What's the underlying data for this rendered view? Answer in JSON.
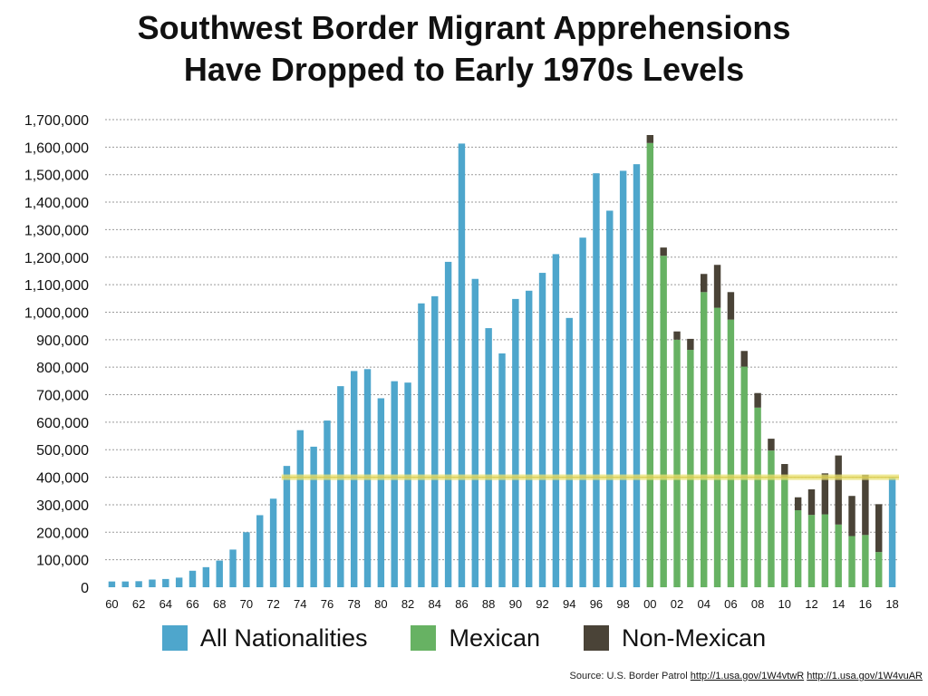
{
  "chart_data": {
    "type": "bar",
    "title_lines": [
      "Southwest Border Migrant Apprehensions",
      "Have Dropped to Early 1970s Levels"
    ],
    "x_tick_labels": [
      "60",
      "62",
      "64",
      "66",
      "68",
      "70",
      "72",
      "74",
      "76",
      "78",
      "80",
      "82",
      "84",
      "86",
      "88",
      "90",
      "92",
      "94",
      "96",
      "98",
      "00",
      "02",
      "04",
      "06",
      "08",
      "10",
      "12",
      "14",
      "16",
      "18"
    ],
    "y_tick_labels": [
      "0",
      "100,000",
      "200,000",
      "300,000",
      "400,000",
      "500,000",
      "600,000",
      "700,000",
      "800,000",
      "900,000",
      "1,000,000",
      "1,100,000",
      "1,200,000",
      "1,300,000",
      "1,400,000",
      "1,500,000",
      "1,600,000",
      "1,700,000"
    ],
    "ylim": [
      0,
      1700000
    ],
    "y_step": 100000,
    "grid": true,
    "reference_line": 400000,
    "colors": {
      "all": "#4ea6cc",
      "mexican": "#67b263",
      "non_mexican": "#4a4337",
      "reference_line": "#e8e070",
      "grid": "#9a9a9a"
    },
    "legend": [
      {
        "key": "all",
        "label": "All Nationalities"
      },
      {
        "key": "mexican",
        "label": "Mexican"
      },
      {
        "key": "non_mexican",
        "label": "Non-Mexican"
      }
    ],
    "legend_position": "bottom",
    "all_nationalities": {
      "years": [
        1960,
        1961,
        1962,
        1963,
        1964,
        1965,
        1966,
        1967,
        1968,
        1969,
        1970,
        1971,
        1972,
        1973,
        1974,
        1975,
        1976,
        1977,
        1978,
        1979,
        1980,
        1981,
        1982,
        1983,
        1984,
        1985,
        1986,
        1987,
        1988,
        1989,
        1990,
        1991,
        1992,
        1993,
        1994,
        1995,
        1996,
        1997,
        1998,
        1999
      ],
      "values": [
        21000,
        21000,
        22000,
        28000,
        30000,
        35000,
        60000,
        73000,
        97000,
        137000,
        200000,
        262000,
        322000,
        441000,
        571000,
        511000,
        606000,
        731000,
        786000,
        793000,
        687000,
        749000,
        744000,
        1032000,
        1058000,
        1183000,
        1613000,
        1121000,
        942000,
        850000,
        1048000,
        1078000,
        1143000,
        1211000,
        979000,
        1271000,
        1505000,
        1369000,
        1514000,
        1538000
      ]
    },
    "stacked": {
      "years": [
        2000,
        2001,
        2002,
        2003,
        2004,
        2005,
        2006,
        2007,
        2008,
        2009,
        2010,
        2011,
        2012,
        2013,
        2014,
        2015,
        2016,
        2017
      ],
      "mexican": [
        1615000,
        1205000,
        900000,
        863000,
        1073000,
        1016000,
        973000,
        802000,
        653000,
        497000,
        397000,
        280000,
        263000,
        265000,
        228000,
        186000,
        190000,
        128000
      ],
      "non_mexican": [
        29000,
        30000,
        30000,
        40000,
        66000,
        156000,
        100000,
        57000,
        53000,
        43000,
        51000,
        47000,
        93000,
        149000,
        251000,
        146000,
        219000,
        174000
      ]
    },
    "all_nationalities_extra": {
      "years": [
        2018
      ],
      "values": [
        397000
      ]
    }
  },
  "source": {
    "prefix": "Source: U.S. Border Patrol",
    "links": [
      "http://1.usa.gov/1W4vtwR",
      "http://1.usa.gov/1W4vuAR"
    ]
  }
}
